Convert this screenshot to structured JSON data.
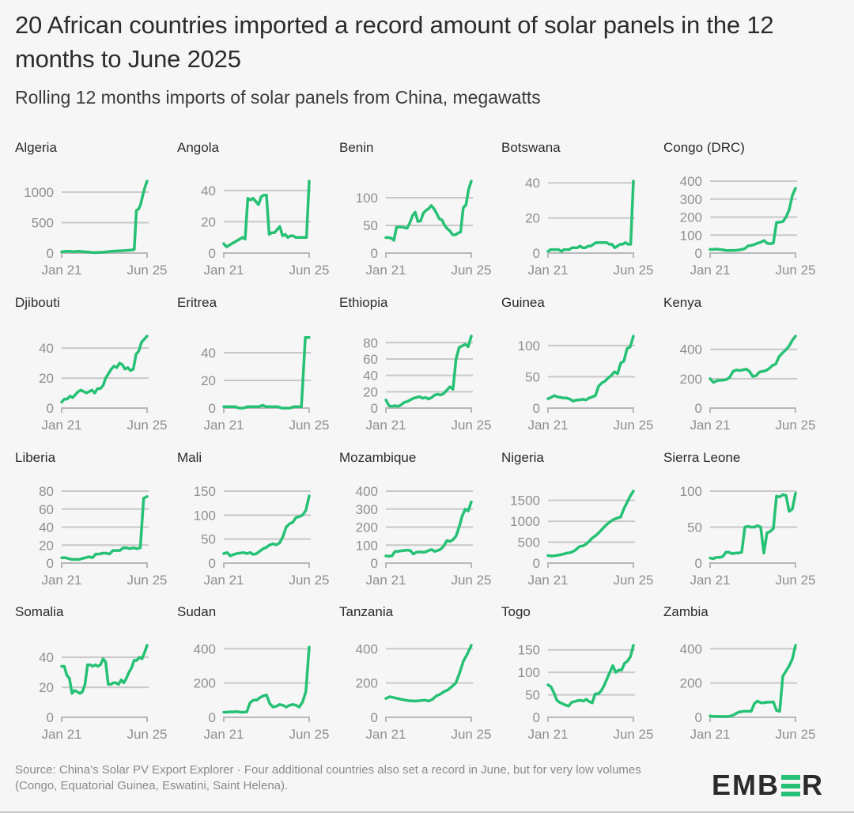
{
  "header": {
    "title": "20 African countries imported a record amount of solar panels in the 12 months to June 2025",
    "subtitle": "Rolling 12 months imports of solar panels from China, megawatts"
  },
  "footer": {
    "source_note": "Source: China’s Solar PV Export Explorer · Four additional countries also set a record in June, but for very low volumes (Congo, Equatorial Guinea, Eswatini, Saint Helena).",
    "logo_text": "EMBER"
  },
  "colors": {
    "line": "#26c174",
    "grid": "#c8c8c8",
    "axis_text": "#8f8f8f",
    "background": "#f6f6f6"
  },
  "chart_data": [
    {
      "type": "line",
      "title": "Algeria",
      "x_start": "Jan 21",
      "x_end": "Jun 25",
      "ylim": [
        0,
        1180
      ],
      "yticks": [
        0,
        500,
        1000
      ],
      "values": [
        20,
        25,
        30,
        28,
        30,
        25,
        22,
        30,
        28,
        26,
        24,
        20,
        18,
        15,
        10,
        8,
        8,
        10,
        12,
        14,
        15,
        20,
        25,
        28,
        30,
        32,
        35,
        35,
        38,
        40,
        42,
        45,
        48,
        50,
        60,
        700,
        720,
        800,
        950,
        1080,
        1180
      ]
    },
    {
      "type": "line",
      "title": "Angola",
      "x_start": "Jan 21",
      "x_end": "Jun 25",
      "ylim": [
        0,
        46
      ],
      "yticks": [
        0,
        20,
        40
      ],
      "values": [
        6,
        4,
        5,
        6,
        7,
        8,
        9,
        10,
        9,
        35,
        34,
        35,
        33,
        31,
        36,
        37,
        37,
        12,
        13,
        13,
        15,
        17,
        11,
        12,
        10,
        11,
        11,
        10,
        10,
        10,
        10,
        10,
        46
      ]
    },
    {
      "type": "line",
      "title": "Benin",
      "x_start": "Jan 21",
      "x_end": "Jun 25",
      "ylim": [
        0,
        130
      ],
      "yticks": [
        0,
        50,
        100
      ],
      "values": [
        28,
        28,
        27,
        23,
        47,
        47,
        47,
        46,
        45,
        55,
        68,
        74,
        57,
        58,
        72,
        77,
        80,
        86,
        80,
        72,
        62,
        60,
        50,
        44,
        40,
        33,
        33,
        36,
        38,
        82,
        87,
        115,
        130
      ]
    },
    {
      "type": "line",
      "title": "Botswana",
      "x_start": "Jan 21",
      "x_end": "Jun 25",
      "ylim": [
        0,
        41
      ],
      "yticks": [
        0,
        20,
        40
      ],
      "values": [
        1,
        2,
        2,
        2,
        2,
        1,
        2,
        2,
        2,
        3,
        3,
        3,
        4,
        3,
        3,
        4,
        4,
        5,
        6,
        6,
        6,
        6,
        6,
        5,
        5,
        3,
        4,
        5,
        5,
        6,
        5,
        5,
        41
      ]
    },
    {
      "type": "line",
      "title": "Congo (DRC)",
      "x_start": "Jan 21",
      "x_end": "Jun 25",
      "ylim": [
        0,
        400
      ],
      "yticks": [
        0,
        100,
        200,
        300,
        400
      ],
      "values": [
        20,
        20,
        22,
        20,
        18,
        15,
        14,
        15,
        15,
        17,
        20,
        25,
        40,
        42,
        48,
        55,
        60,
        70,
        55,
        52,
        55,
        170,
        172,
        175,
        200,
        240,
        320,
        360
      ]
    },
    {
      "type": "line",
      "title": "Djibouti",
      "x_start": "Jan 21",
      "x_end": "Jun 25",
      "ylim": [
        0,
        48
      ],
      "yticks": [
        0,
        20,
        40
      ],
      "values": [
        4,
        6,
        6,
        8,
        7,
        9,
        11,
        12,
        11,
        10,
        11,
        12,
        10,
        13,
        13,
        15,
        20,
        23,
        26,
        28,
        27,
        30,
        29,
        26,
        27,
        25,
        26,
        36,
        38,
        44,
        46,
        48
      ]
    },
    {
      "type": "line",
      "title": "Eritrea",
      "x_start": "Jan 21",
      "x_end": "Jun 25",
      "ylim": [
        0,
        52
      ],
      "yticks": [
        0,
        20,
        40
      ],
      "values": [
        1,
        1,
        1,
        1,
        0,
        0,
        1,
        1,
        1,
        1,
        2,
        1,
        1,
        1,
        1,
        0,
        0,
        0,
        1,
        1,
        1,
        51,
        51
      ]
    },
    {
      "type": "line",
      "title": "Ethiopia",
      "x_start": "Jan 21",
      "x_end": "Jun 25",
      "ylim": [
        0,
        88
      ],
      "yticks": [
        0,
        20,
        40,
        60,
        80
      ],
      "values": [
        10,
        3,
        2,
        3,
        2,
        4,
        7,
        8,
        10,
        12,
        13,
        14,
        12,
        13,
        11,
        13,
        16,
        17,
        16,
        18,
        22,
        26,
        23,
        60,
        74,
        76,
        78,
        75,
        88
      ]
    },
    {
      "type": "line",
      "title": "Guinea",
      "x_start": "Jan 21",
      "x_end": "Jun 25",
      "ylim": [
        0,
        115
      ],
      "yticks": [
        0,
        50,
        100
      ],
      "values": [
        15,
        17,
        20,
        18,
        17,
        16,
        16,
        14,
        11,
        13,
        13,
        14,
        13,
        16,
        18,
        20,
        35,
        40,
        43,
        48,
        52,
        58,
        55,
        72,
        75,
        95,
        98,
        115
      ]
    },
    {
      "type": "line",
      "title": "Kenya",
      "x_start": "Jan 21",
      "x_end": "Jun 25",
      "ylim": [
        0,
        490
      ],
      "yticks": [
        0,
        200,
        400
      ],
      "values": [
        200,
        175,
        185,
        190,
        190,
        195,
        210,
        250,
        260,
        255,
        260,
        265,
        250,
        215,
        220,
        245,
        250,
        255,
        270,
        290,
        300,
        350,
        375,
        395,
        420,
        460,
        490
      ]
    },
    {
      "type": "line",
      "title": "Liberia",
      "x_start": "Jan 21",
      "x_end": "Jun 25",
      "ylim": [
        0,
        80
      ],
      "yticks": [
        0,
        20,
        40,
        60,
        80
      ],
      "values": [
        6,
        6,
        5,
        4,
        4,
        4,
        5,
        6,
        7,
        6,
        10,
        10,
        11,
        11,
        10,
        14,
        14,
        14,
        17,
        17,
        16,
        17,
        16,
        17,
        72,
        74
      ]
    },
    {
      "type": "line",
      "title": "Mali",
      "x_start": "Jan 21",
      "x_end": "Jun 25",
      "ylim": [
        0,
        150
      ],
      "yticks": [
        0,
        50,
        100,
        150
      ],
      "values": [
        20,
        22,
        15,
        18,
        20,
        21,
        22,
        20,
        22,
        18,
        20,
        25,
        30,
        33,
        38,
        40,
        38,
        42,
        55,
        75,
        82,
        85,
        95,
        97,
        100,
        110,
        140
      ]
    },
    {
      "type": "line",
      "title": "Mozambique",
      "x_start": "Jan 21",
      "x_end": "Jun 25",
      "ylim": [
        0,
        400
      ],
      "yticks": [
        0,
        100,
        200,
        300,
        400
      ],
      "values": [
        40,
        38,
        40,
        65,
        65,
        68,
        70,
        72,
        70,
        50,
        60,
        62,
        60,
        62,
        70,
        75,
        65,
        70,
        78,
        95,
        125,
        120,
        130,
        150,
        200,
        260,
        300,
        290,
        340
      ]
    },
    {
      "type": "line",
      "title": "Nigeria",
      "x_start": "Jan 21",
      "x_end": "Jun 25",
      "ylim": [
        0,
        1720
      ],
      "yticks": [
        0,
        500,
        1000,
        1500
      ],
      "values": [
        180,
        170,
        175,
        185,
        200,
        220,
        240,
        250,
        280,
        330,
        400,
        410,
        450,
        520,
        600,
        650,
        720,
        800,
        880,
        950,
        1010,
        1050,
        1080,
        1100,
        1300,
        1450,
        1600,
        1720
      ]
    },
    {
      "type": "line",
      "title": "Sierra Leone",
      "x_start": "Jan 21",
      "x_end": "Jun 25",
      "ylim": [
        0,
        100
      ],
      "yticks": [
        0,
        50,
        100
      ],
      "values": [
        7,
        6,
        8,
        8,
        9,
        15,
        15,
        13,
        14,
        14,
        15,
        50,
        51,
        50,
        50,
        52,
        50,
        14,
        42,
        44,
        48,
        93,
        92,
        95,
        94,
        72,
        75,
        97
      ]
    },
    {
      "type": "line",
      "title": "Somalia",
      "x_start": "Jan 21",
      "x_end": "Jun 25",
      "ylim": [
        0,
        48
      ],
      "yticks": [
        0,
        20,
        40
      ],
      "values": [
        34,
        34,
        28,
        26,
        16,
        18,
        17,
        16,
        17,
        22,
        35,
        35,
        34,
        35,
        34,
        35,
        39,
        37,
        22,
        22,
        23,
        23,
        22,
        25,
        23,
        26,
        30,
        33,
        38,
        38,
        40,
        39,
        43,
        48
      ]
    },
    {
      "type": "line",
      "title": "Sudan",
      "x_start": "Jan 21",
      "x_end": "Jun 25",
      "ylim": [
        0,
        420
      ],
      "yticks": [
        0,
        200,
        400
      ],
      "values": [
        30,
        30,
        32,
        32,
        33,
        30,
        30,
        32,
        85,
        100,
        100,
        115,
        125,
        130,
        80,
        60,
        65,
        75,
        70,
        60,
        70,
        75,
        70,
        60,
        90,
        150,
        410
      ]
    },
    {
      "type": "line",
      "title": "Tanzania",
      "x_start": "Jan 21",
      "x_end": "Jun 25",
      "ylim": [
        0,
        420
      ],
      "yticks": [
        0,
        200,
        400
      ],
      "values": [
        110,
        120,
        115,
        110,
        105,
        100,
        97,
        95,
        95,
        98,
        100,
        95,
        105,
        125,
        135,
        150,
        160,
        180,
        200,
        260,
        330,
        370,
        420
      ]
    },
    {
      "type": "line",
      "title": "Togo",
      "x_start": "Jan 21",
      "x_end": "Jun 25",
      "ylim": [
        0,
        160
      ],
      "yticks": [
        0,
        50,
        100,
        150
      ],
      "values": [
        72,
        68,
        55,
        38,
        33,
        30,
        27,
        25,
        33,
        35,
        37,
        38,
        36,
        40,
        35,
        32,
        52,
        52,
        58,
        70,
        85,
        100,
        115,
        100,
        105,
        105,
        120,
        125,
        135,
        160
      ]
    },
    {
      "type": "line",
      "title": "Zambia",
      "x_start": "Jan 21",
      "x_end": "Jun 25",
      "ylim": [
        0,
        420
      ],
      "yticks": [
        0,
        200,
        400
      ],
      "values": [
        8,
        6,
        5,
        5,
        4,
        5,
        6,
        10,
        20,
        30,
        33,
        35,
        35,
        35,
        80,
        95,
        85,
        85,
        88,
        88,
        90,
        40,
        35,
        240,
        270,
        300,
        340,
        420
      ]
    }
  ]
}
